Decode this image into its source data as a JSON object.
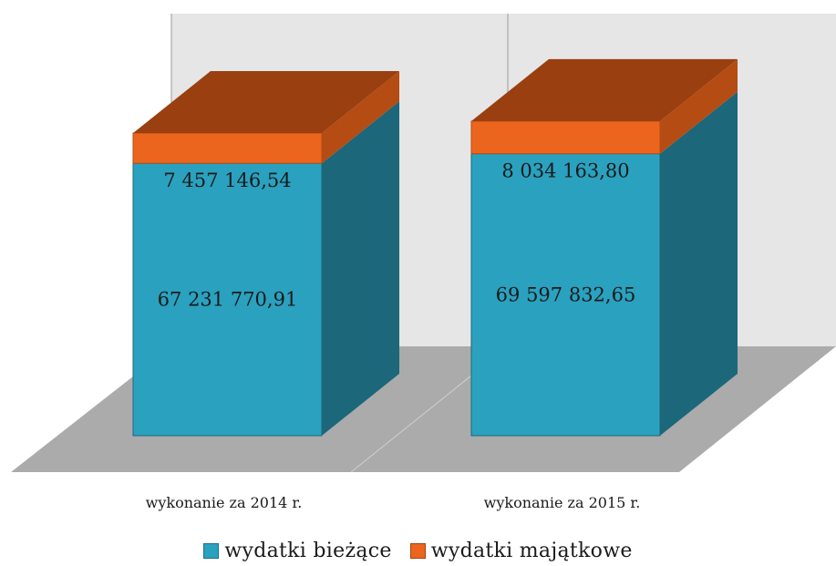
{
  "chart_data": {
    "type": "bar",
    "stacked": true,
    "three_d": true,
    "categories": [
      "wykonanie za 2014 r.",
      "wykonanie za 2015 r."
    ],
    "series": [
      {
        "name": "wydatki bieżące",
        "values": [
          67231770.91,
          69597832.65
        ],
        "labels": [
          "67 231 770,91",
          "69 597 832,65"
        ],
        "color": "#2aa1bf"
      },
      {
        "name": "wydatki majątkowe",
        "values": [
          7457146.54,
          8034163.8
        ],
        "labels": [
          "7 457 146,54",
          "8 034 163,80"
        ],
        "color": "#ec651e"
      }
    ],
    "grid": true,
    "legend_position": "bottom"
  },
  "legend": {
    "items": [
      {
        "label": "wydatki bieżące",
        "color": "#2aa1bf"
      },
      {
        "label": "wydatki majątkowe",
        "color": "#ec651e"
      }
    ]
  }
}
